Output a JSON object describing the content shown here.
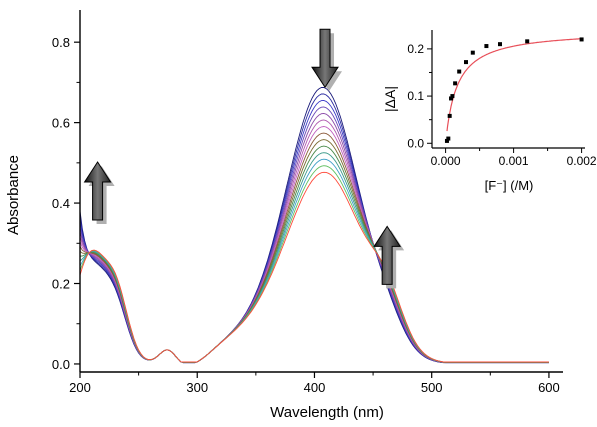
{
  "chart_data": [
    {
      "type": "line",
      "title": "",
      "xlabel": "Wavelength (nm)",
      "ylabel": "Absorbance",
      "xlim": [
        200,
        612
      ],
      "ylim": [
        -0.02,
        0.88
      ],
      "xticks": [
        200,
        300,
        400,
        500,
        600
      ],
      "yticks": [
        0.0,
        0.2,
        0.4,
        0.6,
        0.8
      ],
      "xtick_labels": [
        "200",
        "300",
        "400",
        "500",
        "600"
      ],
      "ytick_labels": [
        "0.0",
        "0.2",
        "0.4",
        "0.6",
        "0.8"
      ],
      "grid": false,
      "legend": "none",
      "series_count": 14,
      "peak_wavelength": 408,
      "peak_absorbance_start": 0.67,
      "peak_absorbance_end": 0.46,
      "isosbestic_points": [
        238,
        368,
        441
      ],
      "arrows": [
        {
          "direction": "up",
          "wavelength": 215,
          "absorbance": 0.43
        },
        {
          "direction": "down",
          "wavelength": 409,
          "absorbance": 0.76
        },
        {
          "direction": "up",
          "wavelength": 462,
          "absorbance": 0.27
        }
      ],
      "colors": {
        "first": "#1a1a7a",
        "last": "#ff4a3a",
        "arrow": "#3a3a3a"
      }
    },
    {
      "type": "scatter",
      "title": "",
      "xlabel": "[F⁻] (/M)",
      "ylabel": "|ΔA|",
      "xlim": [
        -0.0002,
        0.00205
      ],
      "ylim": [
        -0.01,
        0.24
      ],
      "xticks": [
        0.0,
        0.001,
        0.002
      ],
      "yticks": [
        0.0,
        0.1,
        0.2
      ],
      "xtick_labels": [
        "0.000",
        "0.001",
        "0.002"
      ],
      "ytick_labels": [
        "0.0",
        "0.1",
        "0.2"
      ],
      "x": [
        2e-05,
        4e-05,
        6e-05,
        8e-05,
        0.0001,
        0.00014,
        0.0002,
        0.0003,
        0.0004,
        0.0006,
        0.0008,
        0.0012,
        0.002
      ],
      "y": [
        0.005,
        0.01,
        0.058,
        0.095,
        0.1,
        0.127,
        0.152,
        0.172,
        0.192,
        0.206,
        0.21,
        0.216,
        0.22
      ],
      "fit": {
        "model": "binding-isotherm",
        "Amax": 0.24,
        "K": 6000,
        "color": "#e8505a"
      },
      "marker_color": "#000000"
    }
  ]
}
